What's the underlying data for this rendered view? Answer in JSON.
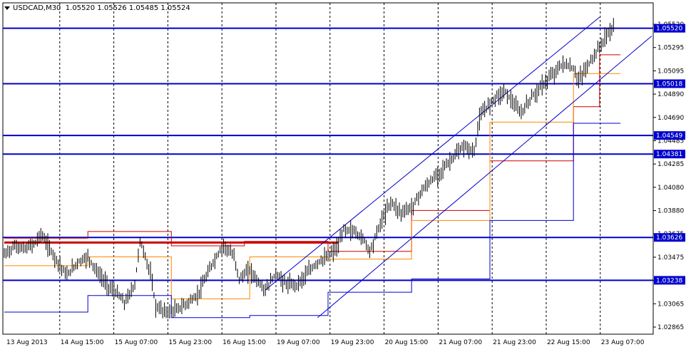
{
  "header": {
    "symbol": "USDCAD,M30",
    "ohlc": "1.05520 1.05526 1.05485 1.05524"
  },
  "chart_data": {
    "type": "candlestick",
    "symbol": "USDCAD",
    "timeframe": "M30",
    "ylim": [
      1.0275,
      1.0575
    ],
    "y_ticks": [
      "1.05520",
      "1.05295",
      "1.05095",
      "1.04890",
      "1.04690",
      "1.04485",
      "1.04285",
      "1.04080",
      "1.03880",
      "1.03675",
      "1.03475",
      "1.03270",
      "1.03065",
      "1.02865"
    ],
    "x_ticks": [
      "13 Aug 2013",
      "14 Aug 15:00",
      "15 Aug 07:00",
      "15 Aug 23:00",
      "16 Aug 15:00",
      "19 Aug 07:00",
      "19 Aug 23:00",
      "20 Aug 15:00",
      "21 Aug 07:00",
      "21 Aug 23:00",
      "22 Aug 15:00",
      "23 Aug 07:00"
    ],
    "horizontal_levels": [
      {
        "value": 1.0552,
        "label": "1.05520",
        "color": "#0000cc"
      },
      {
        "value": 1.05018,
        "label": "1.05018",
        "color": "#0000cc"
      },
      {
        "value": 1.04549,
        "label": "1.04549",
        "color": "#0000cc"
      },
      {
        "value": 1.04381,
        "label": "1.04381",
        "color": "#0000cc"
      },
      {
        "value": 1.03626,
        "label": "1.03626",
        "color": "#0000cc"
      },
      {
        "value": 1.03238,
        "label": "1.03238",
        "color": "#0000cc"
      }
    ],
    "price_path": [
      {
        "x": 0,
        "y": 1.0347
      },
      {
        "x": 2,
        "y": 1.0355
      },
      {
        "x": 4,
        "y": 1.0352
      },
      {
        "x": 6,
        "y": 1.0358
      },
      {
        "x": 7,
        "y": 1.0366
      },
      {
        "x": 9,
        "y": 1.035
      },
      {
        "x": 11,
        "y": 1.0335
      },
      {
        "x": 12,
        "y": 1.0328
      },
      {
        "x": 14,
        "y": 1.034
      },
      {
        "x": 16,
        "y": 1.0345
      },
      {
        "x": 18,
        "y": 1.033
      },
      {
        "x": 20,
        "y": 1.0318
      },
      {
        "x": 22,
        "y": 1.031
      },
      {
        "x": 23,
        "y": 1.0303
      },
      {
        "x": 25,
        "y": 1.032
      },
      {
        "x": 26,
        "y": 1.036
      },
      {
        "x": 28,
        "y": 1.033
      },
      {
        "x": 29,
        "y": 1.03
      },
      {
        "x": 31,
        "y": 1.0295
      },
      {
        "x": 33,
        "y": 1.0297
      },
      {
        "x": 35,
        "y": 1.0303
      },
      {
        "x": 37,
        "y": 1.031
      },
      {
        "x": 38,
        "y": 1.032
      },
      {
        "x": 40,
        "y": 1.034
      },
      {
        "x": 42,
        "y": 1.0356
      },
      {
        "x": 44,
        "y": 1.0345
      },
      {
        "x": 45,
        "y": 1.0325
      },
      {
        "x": 47,
        "y": 1.0333
      },
      {
        "x": 49,
        "y": 1.032
      },
      {
        "x": 50,
        "y": 1.0315
      },
      {
        "x": 52,
        "y": 1.033
      },
      {
        "x": 54,
        "y": 1.032
      },
      {
        "x": 56,
        "y": 1.032
      },
      {
        "x": 58,
        "y": 1.033
      },
      {
        "x": 60,
        "y": 1.034
      },
      {
        "x": 62,
        "y": 1.0345
      },
      {
        "x": 64,
        "y": 1.0355
      },
      {
        "x": 65,
        "y": 1.037
      },
      {
        "x": 67,
        "y": 1.0368
      },
      {
        "x": 69,
        "y": 1.036
      },
      {
        "x": 70,
        "y": 1.035
      },
      {
        "x": 72,
        "y": 1.0375
      },
      {
        "x": 74,
        "y": 1.0395
      },
      {
        "x": 76,
        "y": 1.0385
      },
      {
        "x": 78,
        "y": 1.039
      },
      {
        "x": 80,
        "y": 1.0405
      },
      {
        "x": 82,
        "y": 1.0415
      },
      {
        "x": 84,
        "y": 1.0425
      },
      {
        "x": 86,
        "y": 1.0435
      },
      {
        "x": 88,
        "y": 1.0445
      },
      {
        "x": 90,
        "y": 1.044
      },
      {
        "x": 91,
        "y": 1.047
      },
      {
        "x": 92,
        "y": 1.0478
      },
      {
        "x": 94,
        "y": 1.049
      },
      {
        "x": 96,
        "y": 1.0495
      },
      {
        "x": 98,
        "y": 1.048
      },
      {
        "x": 99,
        "y": 1.0475
      },
      {
        "x": 101,
        "y": 1.049
      },
      {
        "x": 103,
        "y": 1.05
      },
      {
        "x": 105,
        "y": 1.051
      },
      {
        "x": 107,
        "y": 1.052
      },
      {
        "x": 109,
        "y": 1.0515
      },
      {
        "x": 110,
        "y": 1.0505
      },
      {
        "x": 112,
        "y": 1.052
      },
      {
        "x": 114,
        "y": 1.0535
      },
      {
        "x": 116,
        "y": 1.055
      },
      {
        "x": 117,
        "y": 1.0552
      }
    ],
    "channel_lines": [
      {
        "x1": 50,
        "y1": 1.0315,
        "x2": 114,
        "y2": 1.0562
      },
      {
        "x1": 60,
        "y1": 1.029,
        "x2": 124,
        "y2": 1.0545
      }
    ],
    "step_lines": [
      {
        "color": "#cc0000",
        "points": [
          [
            0,
            1.0362
          ],
          [
            16,
            1.0362
          ],
          [
            16,
            1.0368
          ],
          [
            32,
            1.0368
          ],
          [
            32,
            1.0355
          ],
          [
            46,
            1.0355
          ],
          [
            46,
            1.0359
          ],
          [
            62,
            1.0359
          ],
          [
            62,
            1.035
          ],
          [
            78,
            1.035
          ],
          [
            78,
            1.0387
          ],
          [
            93,
            1.0387
          ],
          [
            93,
            1.0432
          ],
          [
            109,
            1.0432
          ],
          [
            109,
            1.0481
          ],
          [
            114,
            1.0481
          ],
          [
            114,
            1.0528
          ],
          [
            118,
            1.0528
          ]
        ]
      },
      {
        "color": "#ff8800",
        "points": [
          [
            0,
            1.0337
          ],
          [
            16,
            1.0337
          ],
          [
            16,
            1.0345
          ],
          [
            32,
            1.0345
          ],
          [
            32,
            1.0307
          ],
          [
            47,
            1.0307
          ],
          [
            47,
            1.0345
          ],
          [
            62,
            1.0345
          ],
          [
            62,
            1.0343
          ],
          [
            78,
            1.0343
          ],
          [
            78,
            1.0378
          ],
          [
            93,
            1.0378
          ],
          [
            93,
            1.0467
          ],
          [
            109,
            1.0467
          ],
          [
            109,
            1.0511
          ],
          [
            118,
            1.0511
          ]
        ]
      },
      {
        "color": "#0000cc",
        "points": [
          [
            0,
            1.0295
          ],
          [
            16,
            1.0295
          ],
          [
            16,
            1.031
          ],
          [
            32,
            1.031
          ],
          [
            32,
            1.029
          ],
          [
            47,
            1.029
          ],
          [
            47,
            1.0292
          ],
          [
            62,
            1.0292
          ],
          [
            62,
            1.0313
          ],
          [
            78,
            1.0313
          ],
          [
            78,
            1.0325
          ],
          [
            93,
            1.0325
          ],
          [
            93,
            1.0378
          ],
          [
            109,
            1.0378
          ],
          [
            109,
            1.0466
          ],
          [
            118,
            1.0466
          ]
        ]
      }
    ],
    "thick_red_line": {
      "x1": 0,
      "x2": 64,
      "y": 1.0358,
      "color": "#cc0000"
    }
  }
}
